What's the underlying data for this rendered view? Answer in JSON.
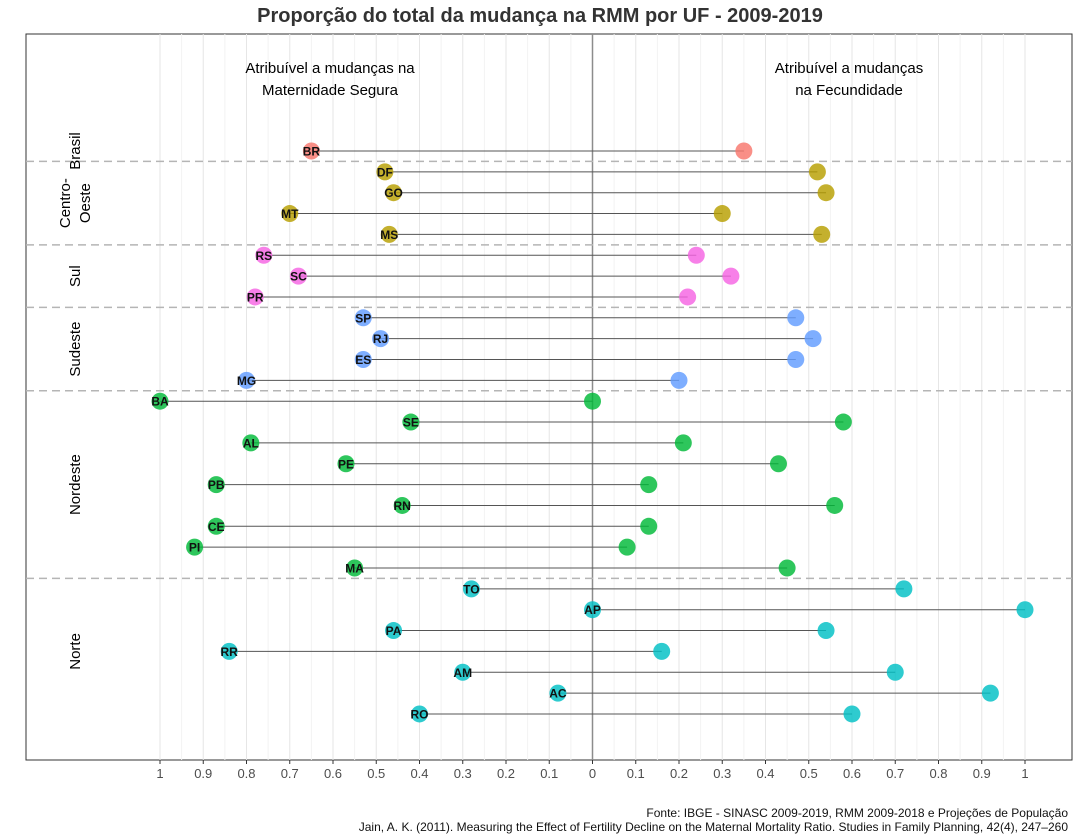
{
  "chart_data": {
    "type": "dumbbell",
    "title": "Proporção do total da mudança na RMM por UF - 2009-2019",
    "left_panel_label_lines": [
      "Atribuível a mudanças na",
      "Maternidade Segura"
    ],
    "right_panel_label_lines": [
      "Atribuível a mudanças",
      "na Fecundidade"
    ],
    "x_ticks_left": [
      "1",
      "0.9",
      "0.8",
      "0.7",
      "0.6",
      "0.5",
      "0.4",
      "0.3",
      "0.2",
      "0.1",
      "0"
    ],
    "x_ticks_right": [
      "0.1",
      "0.2",
      "0.3",
      "0.4",
      "0.5",
      "0.6",
      "0.7",
      "0.8",
      "0.9",
      "1"
    ],
    "xlim": [
      -1.0,
      1.0
    ],
    "grid": true,
    "group_colors": {
      "Brasil": "#F8766D",
      "Centro-Oeste": "#B79F00",
      "Sul": "#F564E3",
      "Sudeste": "#619CFF",
      "Nordeste": "#00BA38",
      "Norte": "#00BFC4"
    },
    "groups": [
      {
        "name_lines": [
          "Brasil"
        ],
        "key": "Brasil"
      },
      {
        "name_lines": [
          "Centro-",
          "Oeste"
        ],
        "key": "Centro-Oeste"
      },
      {
        "name_lines": [
          "Sul"
        ],
        "key": "Sul"
      },
      {
        "name_lines": [
          "Sudeste"
        ],
        "key": "Sudeste"
      },
      {
        "name_lines": [
          "Nordeste"
        ],
        "key": "Nordeste"
      },
      {
        "name_lines": [
          "Norte"
        ],
        "key": "Norte"
      }
    ],
    "states": [
      {
        "uf": "BR",
        "group": "Brasil",
        "maternidade_segura": 0.65,
        "fecundidade": 0.35
      },
      {
        "uf": "DF",
        "group": "Centro-Oeste",
        "maternidade_segura": 0.48,
        "fecundidade": 0.52
      },
      {
        "uf": "GO",
        "group": "Centro-Oeste",
        "maternidade_segura": 0.46,
        "fecundidade": 0.54
      },
      {
        "uf": "MT",
        "group": "Centro-Oeste",
        "maternidade_segura": 0.7,
        "fecundidade": 0.3
      },
      {
        "uf": "MS",
        "group": "Centro-Oeste",
        "maternidade_segura": 0.47,
        "fecundidade": 0.53
      },
      {
        "uf": "RS",
        "group": "Sul",
        "maternidade_segura": 0.76,
        "fecundidade": 0.24
      },
      {
        "uf": "SC",
        "group": "Sul",
        "maternidade_segura": 0.68,
        "fecundidade": 0.32
      },
      {
        "uf": "PR",
        "group": "Sul",
        "maternidade_segura": 0.78,
        "fecundidade": 0.22
      },
      {
        "uf": "SP",
        "group": "Sudeste",
        "maternidade_segura": 0.53,
        "fecundidade": 0.47
      },
      {
        "uf": "RJ",
        "group": "Sudeste",
        "maternidade_segura": 0.49,
        "fecundidade": 0.51
      },
      {
        "uf": "ES",
        "group": "Sudeste",
        "maternidade_segura": 0.53,
        "fecundidade": 0.47
      },
      {
        "uf": "MG",
        "group": "Sudeste",
        "maternidade_segura": 0.8,
        "fecundidade": 0.2
      },
      {
        "uf": "BA",
        "group": "Nordeste",
        "maternidade_segura": 1.0,
        "fecundidade": 0.0
      },
      {
        "uf": "SE",
        "group": "Nordeste",
        "maternidade_segura": 0.42,
        "fecundidade": 0.58
      },
      {
        "uf": "AL",
        "group": "Nordeste",
        "maternidade_segura": 0.79,
        "fecundidade": 0.21
      },
      {
        "uf": "PE",
        "group": "Nordeste",
        "maternidade_segura": 0.57,
        "fecundidade": 0.43
      },
      {
        "uf": "PB",
        "group": "Nordeste",
        "maternidade_segura": 0.87,
        "fecundidade": 0.13
      },
      {
        "uf": "RN",
        "group": "Nordeste",
        "maternidade_segura": 0.44,
        "fecundidade": 0.56
      },
      {
        "uf": "CE",
        "group": "Nordeste",
        "maternidade_segura": 0.87,
        "fecundidade": 0.13
      },
      {
        "uf": "PI",
        "group": "Nordeste",
        "maternidade_segura": 0.92,
        "fecundidade": 0.08
      },
      {
        "uf": "MA",
        "group": "Nordeste",
        "maternidade_segura": 0.55,
        "fecundidade": 0.45
      },
      {
        "uf": "TO",
        "group": "Norte",
        "maternidade_segura": 0.28,
        "fecundidade": 0.72
      },
      {
        "uf": "AP",
        "group": "Norte",
        "maternidade_segura": 0.0,
        "fecundidade": 1.0
      },
      {
        "uf": "PA",
        "group": "Norte",
        "maternidade_segura": 0.46,
        "fecundidade": 0.54
      },
      {
        "uf": "RR",
        "group": "Norte",
        "maternidade_segura": 0.84,
        "fecundidade": 0.16
      },
      {
        "uf": "AM",
        "group": "Norte",
        "maternidade_segura": 0.3,
        "fecundidade": 0.7
      },
      {
        "uf": "AC",
        "group": "Norte",
        "maternidade_segura": 0.08,
        "fecundidade": 0.92
      },
      {
        "uf": "RO",
        "group": "Norte",
        "maternidade_segura": 0.4,
        "fecundidade": 0.6
      }
    ]
  },
  "source": {
    "line1": "Fonte: IBGE - SINASC 2009-2019, RMM 2009-2018 e Projeções de População",
    "line2": "Jain, A. K. (2011). Measuring the Effect of Fertility Decline on the Maternal Mortality Ratio. Studies in Family Planning, 42(4), 247–260"
  }
}
